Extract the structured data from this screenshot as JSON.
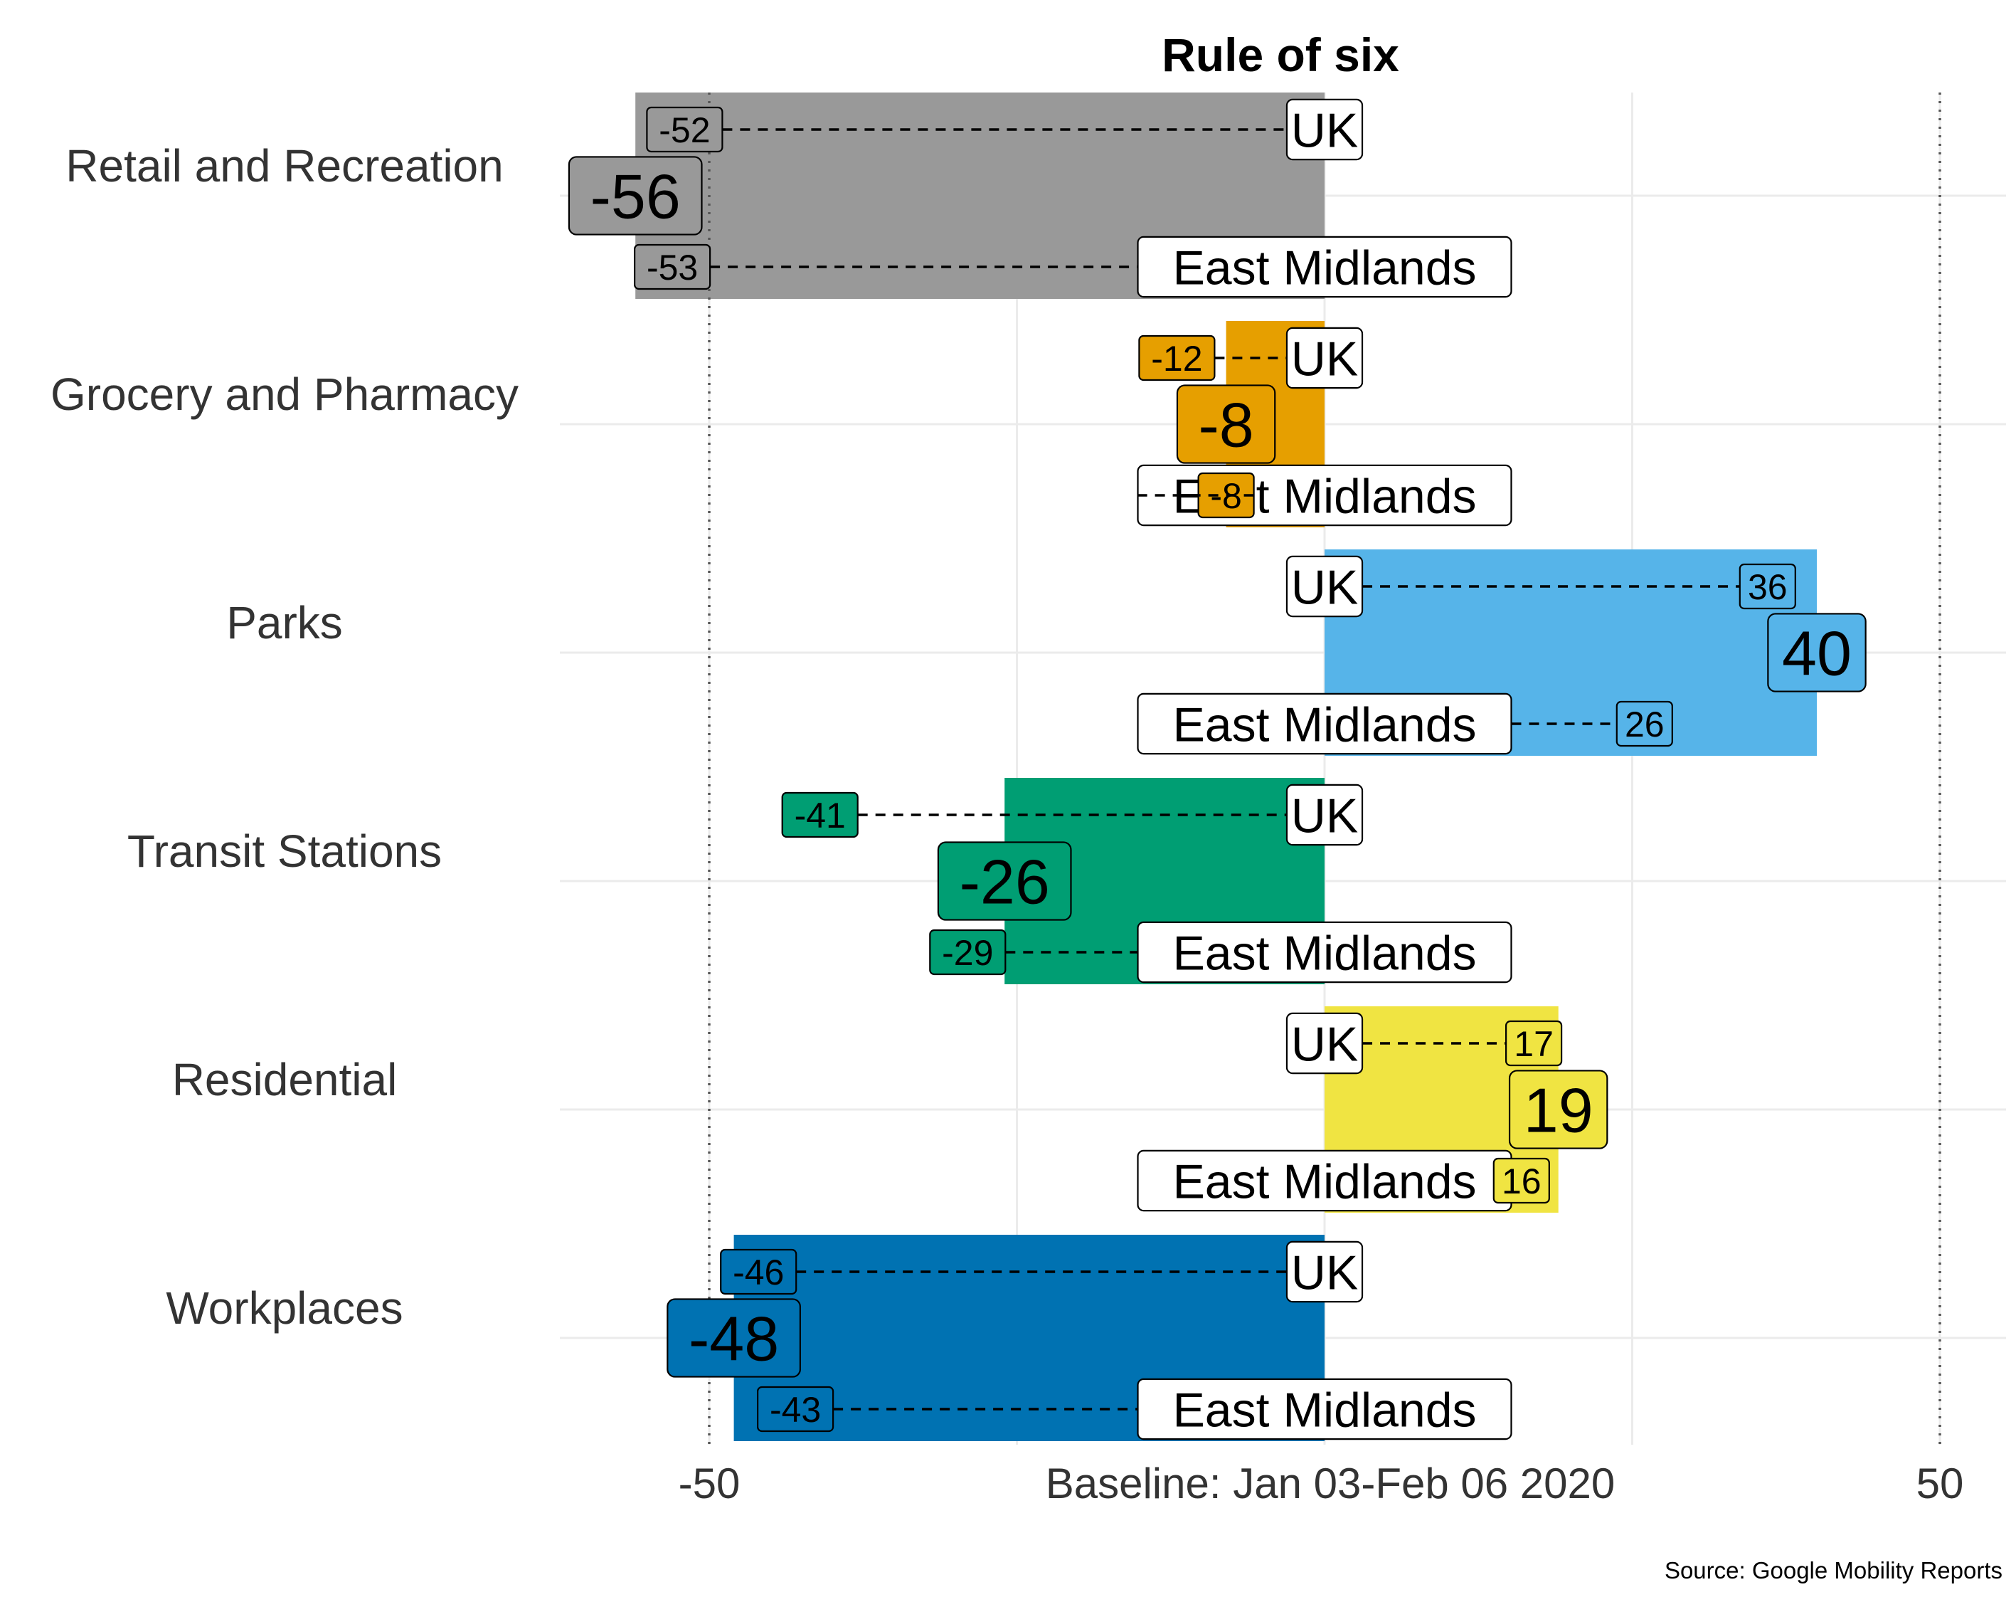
{
  "chart_data": {
    "type": "bar",
    "title": "Rule of six",
    "xlabel": "Baseline: Jan 03-Feb 06 2020",
    "caption": "Source: Google Mobility Reports",
    "xlim": [
      -56,
      56
    ],
    "x_ticks": [
      {
        "value": -50,
        "label": "-50"
      },
      {
        "value": 50,
        "label": "50"
      }
    ],
    "grid": true,
    "reference_lines": [
      -50,
      50
    ],
    "ref_label_uk": "UK",
    "ref_label_region": "East Midlands",
    "categories": [
      "Retail and Recreation",
      "Grocery and Pharmacy",
      "Parks",
      "Transit Stations",
      "Residential",
      "Workplaces"
    ],
    "values": [
      -56,
      -8,
      40,
      -26,
      19,
      -48
    ],
    "uk_values": [
      -52,
      -12,
      36,
      -41,
      17,
      -46
    ],
    "east_midlands_values": [
      -53,
      -8,
      26,
      -29,
      16,
      -43
    ],
    "colors": [
      "#999999",
      "#E69F00",
      "#56B4E9",
      "#009E73",
      "#F0E442",
      "#0072B2"
    ]
  }
}
